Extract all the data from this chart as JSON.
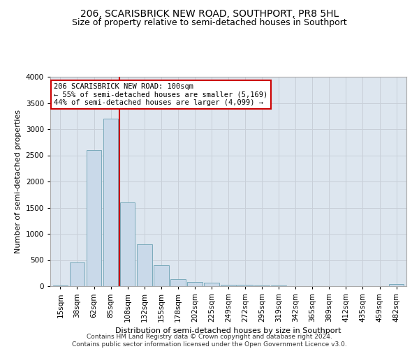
{
  "title1": "206, SCARISBRICK NEW ROAD, SOUTHPORT, PR8 5HL",
  "title2": "Size of property relative to semi-detached houses in Southport",
  "xlabel": "Distribution of semi-detached houses by size in Southport",
  "ylabel": "Number of semi-detached properties",
  "footer1": "Contains HM Land Registry data © Crown copyright and database right 2024.",
  "footer2": "Contains public sector information licensed under the Open Government Licence v3.0.",
  "annotation_title": "206 SCARISBRICK NEW ROAD: 100sqm",
  "annotation_line1": "← 55% of semi-detached houses are smaller (5,169)",
  "annotation_line2": "44% of semi-detached houses are larger (4,099) →",
  "bar_color": "#c9d9e9",
  "bar_edge_color": "#7aaabb",
  "subject_line_color": "#cc0000",
  "annotation_box_color": "#ffffff",
  "annotation_box_edge": "#cc0000",
  "grid_color": "#c8cfd8",
  "background_color": "#dde6ef",
  "categories": [
    "15sqm",
    "38sqm",
    "62sqm",
    "85sqm",
    "108sqm",
    "132sqm",
    "155sqm",
    "178sqm",
    "202sqm",
    "225sqm",
    "249sqm",
    "272sqm",
    "295sqm",
    "319sqm",
    "342sqm",
    "365sqm",
    "389sqm",
    "412sqm",
    "435sqm",
    "459sqm",
    "482sqm"
  ],
  "values": [
    10,
    450,
    2600,
    3200,
    1600,
    800,
    400,
    130,
    80,
    70,
    30,
    25,
    20,
    8,
    5,
    5,
    3,
    3,
    0,
    0,
    40
  ],
  "ylim": [
    0,
    4000
  ],
  "yticks": [
    0,
    500,
    1000,
    1500,
    2000,
    2500,
    3000,
    3500,
    4000
  ],
  "subject_bar_index": 3,
  "title1_fontsize": 10,
  "title2_fontsize": 9,
  "ylabel_fontsize": 8,
  "xlabel_fontsize": 8,
  "tick_fontsize": 7.5,
  "footer_fontsize": 6.5
}
